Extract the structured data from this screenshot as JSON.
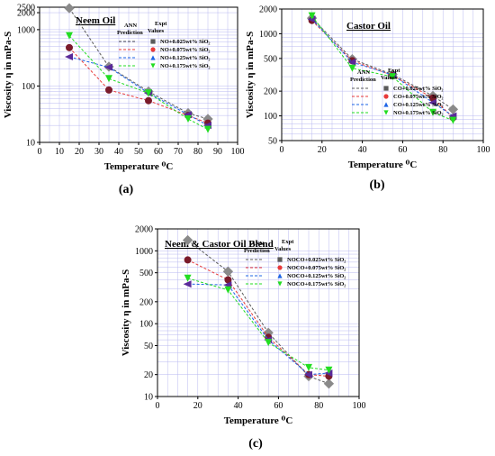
{
  "colors": {
    "axis": "#000000",
    "grid": "#b9b9f0",
    "series": [
      "#5a5a5a",
      "#e83a3a",
      "#1e64e6",
      "#22dd22"
    ],
    "expt_markers": [
      "#8a8a8a",
      "#7a1a2a",
      "#5a2a9a",
      "#22dd22"
    ]
  },
  "icons": [
    "square-marker",
    "circle-marker",
    "triangle-up-marker",
    "triangle-down-marker"
  ],
  "chart_data": [
    {
      "type": "line",
      "panel_label": "(a)",
      "title": "Neem Oil",
      "xlabel": "Temperature ⁰C",
      "ylabel": "Viscosity η in mPa-S",
      "xlim": [
        0,
        100
      ],
      "ylim": [
        10,
        2500
      ],
      "yscale": "log",
      "grid": true,
      "xticks": [
        0,
        10,
        20,
        30,
        40,
        50,
        60,
        70,
        80,
        90,
        100
      ],
      "yticks": [
        10,
        100,
        1000,
        2000,
        2500
      ],
      "legend": {
        "ann_heading": "ANN Prediction",
        "expt_heading": "Expt Values",
        "placement": "top-right",
        "labels": [
          "NO+0.025wt% SiO₂",
          "NO+0.075wt% SiO₂",
          "NO+0.125wt% SiO₂",
          "NO+0.175wt% SiO₂"
        ]
      },
      "x": [
        15,
        35,
        55,
        75,
        85
      ],
      "series": [
        {
          "name": "NO+0.025wt% SiO₂",
          "values": [
            2400,
            220,
            80,
            33,
            26
          ]
        },
        {
          "name": "NO+0.075wt% SiO₂",
          "values": [
            480,
            85,
            55,
            30,
            22
          ]
        },
        {
          "name": "NO+0.125wt% SiO₂",
          "values": [
            330,
            215,
            75,
            31,
            20
          ]
        },
        {
          "name": "NO+0.175wt% SiO₂",
          "values": [
            780,
            135,
            75,
            26,
            17
          ]
        }
      ]
    },
    {
      "type": "line",
      "panel_label": "(b)",
      "title": "Castor Oil",
      "xlabel": "Temperature ⁰C",
      "ylabel": "Viscosity η in mPa-S",
      "xlim": [
        0,
        100
      ],
      "ylim": [
        50,
        2000
      ],
      "yscale": "log",
      "grid": true,
      "xticks": [
        0,
        20,
        40,
        60,
        80,
        100
      ],
      "yticks": [
        50,
        100,
        200,
        500,
        1000,
        2000
      ],
      "legend": {
        "ann_heading": "ANN Prediction",
        "expt_heading": "Expt Values",
        "placement": "right",
        "labels": [
          "CO+0.025wt% SiO₂",
          "CO+0.075wt% SiO₂",
          "CO+0.125wt% SiO₂",
          "NO+0.175wt% SiO₂"
        ]
      },
      "x": [
        15,
        35,
        55,
        75,
        85
      ],
      "series": [
        {
          "name": "CO+0.025wt% SiO₂",
          "values": [
            1550,
            490,
            320,
            175,
            120
          ]
        },
        {
          "name": "CO+0.075wt% SiO₂",
          "values": [
            1450,
            470,
            310,
            165,
            95
          ]
        },
        {
          "name": "CO+0.125wt% SiO₂",
          "values": [
            1500,
            450,
            315,
            145,
            100
          ]
        },
        {
          "name": "NO+0.175wt% SiO₂",
          "values": [
            1650,
            380,
            300,
            110,
            88
          ]
        }
      ]
    },
    {
      "type": "line",
      "panel_label": "(c)",
      "title": "Neem & Castor Oil Blend",
      "xlabel": "Temperature ⁰C",
      "ylabel": "Viscosity η in mPa-S",
      "xlim": [
        0,
        100
      ],
      "ylim": [
        10,
        2000
      ],
      "yscale": "log",
      "grid": true,
      "xticks": [
        0,
        20,
        40,
        60,
        80,
        100
      ],
      "yticks": [
        10,
        20,
        50,
        100,
        200,
        500,
        1000,
        2000
      ],
      "legend": {
        "ann_heading": "ANN Prediction",
        "expt_heading": "Expt Values",
        "placement": "top-right",
        "labels": [
          "NOCO+0.025wt% SiO₂",
          "NOCO+0.075wt% SiO₂",
          "NOCO+0.125wt% SiO₂",
          "NOCO+0.175wt% SiO₂"
        ]
      },
      "x": [
        15,
        35,
        55,
        75,
        85
      ],
      "series": [
        {
          "name": "NOCO+0.025wt% SiO₂",
          "values": [
            1400,
            520,
            75,
            19,
            15
          ]
        },
        {
          "name": "NOCO+0.075wt% SiO₂",
          "values": [
            750,
            400,
            65,
            20,
            19
          ]
        },
        {
          "name": "NOCO+0.125wt% SiO₂",
          "values": [
            350,
            340,
            60,
            20,
            21
          ]
        },
        {
          "name": "NOCO+0.175wt% SiO₂",
          "values": [
            420,
            290,
            55,
            25,
            23
          ]
        }
      ]
    }
  ]
}
